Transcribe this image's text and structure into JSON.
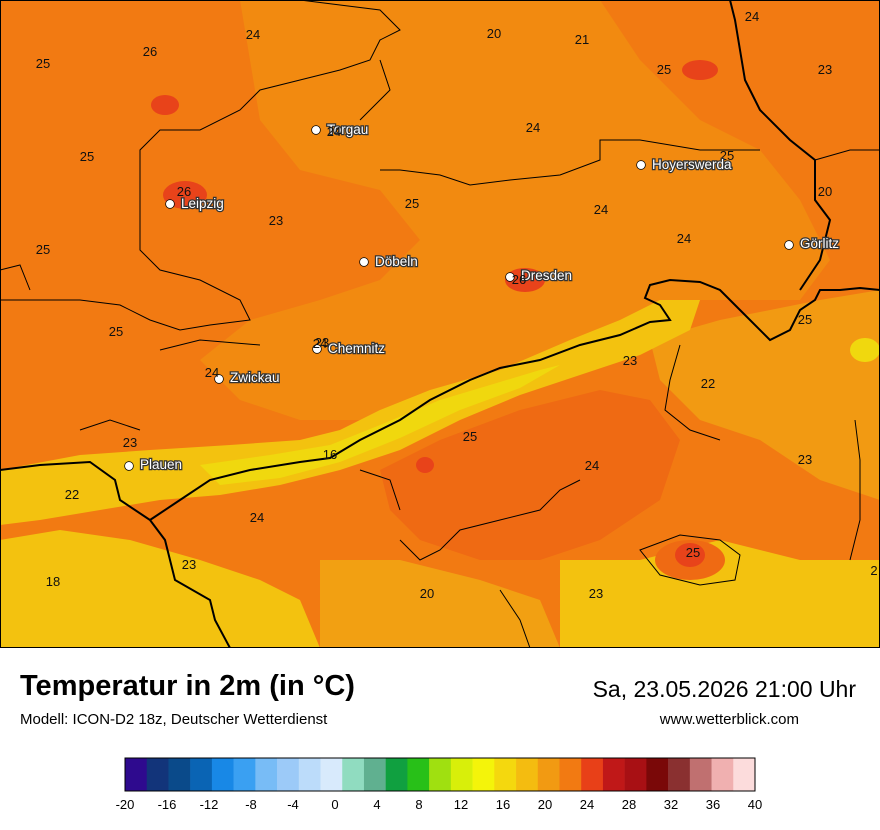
{
  "header": {
    "title": "Temperatur in 2m (in °C)",
    "model": "Modell: ICON-D2 18z, Deutscher Wetterdienst",
    "datetime": "Sa, 23.05.2026 21:00 Uhr",
    "website": "www.wetterblick.com"
  },
  "colors": {
    "t18": "#f3c20f",
    "t20": "#f2a012",
    "t22": "#f28a10",
    "t23": "#f27a12",
    "t24": "#ef6a13",
    "t26": "#e8431a",
    "t16": "#f0d80e",
    "border": "#000000"
  },
  "cities": [
    {
      "name": "Torgau",
      "value": "24"
    },
    {
      "name": "Leipzig",
      "value": "26"
    },
    {
      "name": "Hoyerswerda",
      "value": "25"
    },
    {
      "name": "Döbeln",
      "value": ""
    },
    {
      "name": "Dresden",
      "value": "26"
    },
    {
      "name": "Görlitz",
      "value": ""
    },
    {
      "name": "Chemnitz",
      "value": "24"
    },
    {
      "name": "Zwickau",
      "value": "24"
    },
    {
      "name": "Plauen",
      "value": "23"
    }
  ],
  "temperature_labels": [
    "24",
    "20",
    "21",
    "24",
    "25",
    "26",
    "25",
    "23",
    "25",
    "24",
    "25",
    "26",
    "25",
    "20",
    "23",
    "25",
    "24",
    "24",
    "25",
    "25",
    "23",
    "25",
    "22",
    "23",
    "16",
    "24",
    "23",
    "22",
    "24",
    "23",
    "18",
    "23",
    "25",
    "20",
    "23",
    "2"
  ],
  "legend": {
    "ticks": [
      "-20",
      "-16",
      "-12",
      "-8",
      "-4",
      "0",
      "4",
      "8",
      "12",
      "16",
      "20",
      "24",
      "28",
      "32",
      "36",
      "40"
    ],
    "colors": [
      "#2e0a8e",
      "#12347a",
      "#0a4a8a",
      "#0a64b4",
      "#1888e6",
      "#3aa0f2",
      "#78bcf6",
      "#9ccaf8",
      "#bcdcfa",
      "#d8eafc",
      "#90dcc0",
      "#60b090",
      "#10a040",
      "#28c018",
      "#a0e010",
      "#d8ef0a",
      "#f4f40a",
      "#f4d80e",
      "#f4bc10",
      "#f29a12",
      "#f27a12",
      "#e84018",
      "#c01818",
      "#a81014",
      "#7a0808",
      "#8a3030",
      "#c07070",
      "#f0b0b0",
      "#fcdcdc"
    ]
  }
}
